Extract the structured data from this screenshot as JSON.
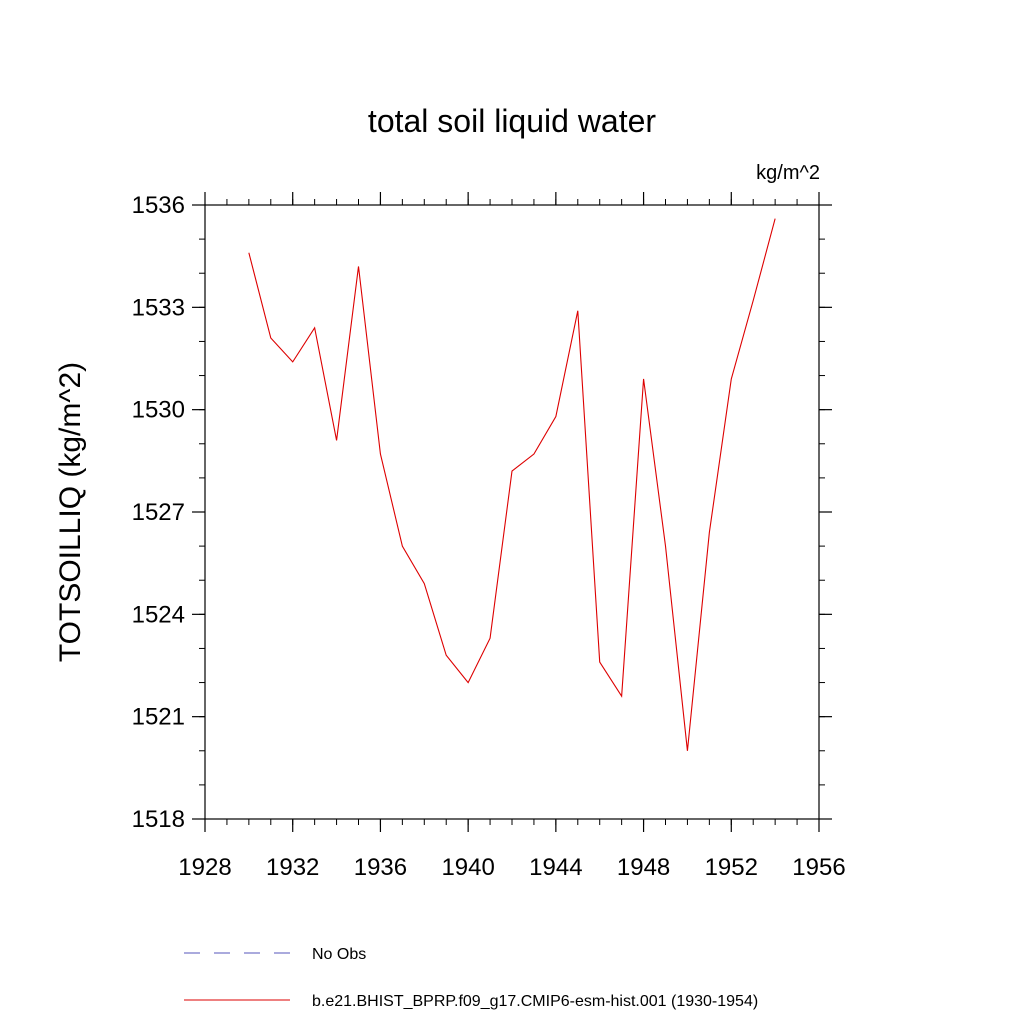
{
  "chart_data": {
    "type": "line",
    "title": "total soil liquid water",
    "units": "kg/m^2",
    "ylabel": "TOTSOILLIQ  (kg/m^2)",
    "xlabel": "",
    "xlim": [
      1928,
      1956
    ],
    "ylim": [
      1518,
      1536
    ],
    "xticks": [
      1928,
      1932,
      1936,
      1940,
      1944,
      1948,
      1952,
      1956
    ],
    "yticks": [
      1518,
      1521,
      1524,
      1527,
      1530,
      1533,
      1536
    ],
    "grid": false,
    "legend_position": "bottom",
    "series": [
      {
        "name": "b.e21.BHIST_BPRP.f09_g17.CMIP6-esm-hist.001 (1930-1954)",
        "color": "#dd0000",
        "style": "solid",
        "x": [
          1930,
          1931,
          1932,
          1933,
          1934,
          1935,
          1936,
          1937,
          1938,
          1939,
          1940,
          1941,
          1942,
          1943,
          1944,
          1945,
          1946,
          1947,
          1948,
          1949,
          1950,
          1951,
          1952,
          1953,
          1954
        ],
        "y": [
          1534.6,
          1532.1,
          1531.4,
          1532.4,
          1529.1,
          1534.2,
          1528.7,
          1526.0,
          1524.9,
          1522.8,
          1522.0,
          1523.3,
          1528.2,
          1528.7,
          1529.8,
          1532.9,
          1522.6,
          1521.6,
          1530.9,
          1526.0,
          1520.0,
          1526.4,
          1530.9,
          1533.2,
          1535.6
        ]
      }
    ],
    "legend": [
      {
        "label": "No Obs",
        "color": "#5555bb",
        "style": "dashed"
      },
      {
        "label": "b.e21.BHIST_BPRP.f09_g17.CMIP6-esm-hist.001 (1930-1954)",
        "color": "#dd0000",
        "style": "solid"
      }
    ]
  }
}
